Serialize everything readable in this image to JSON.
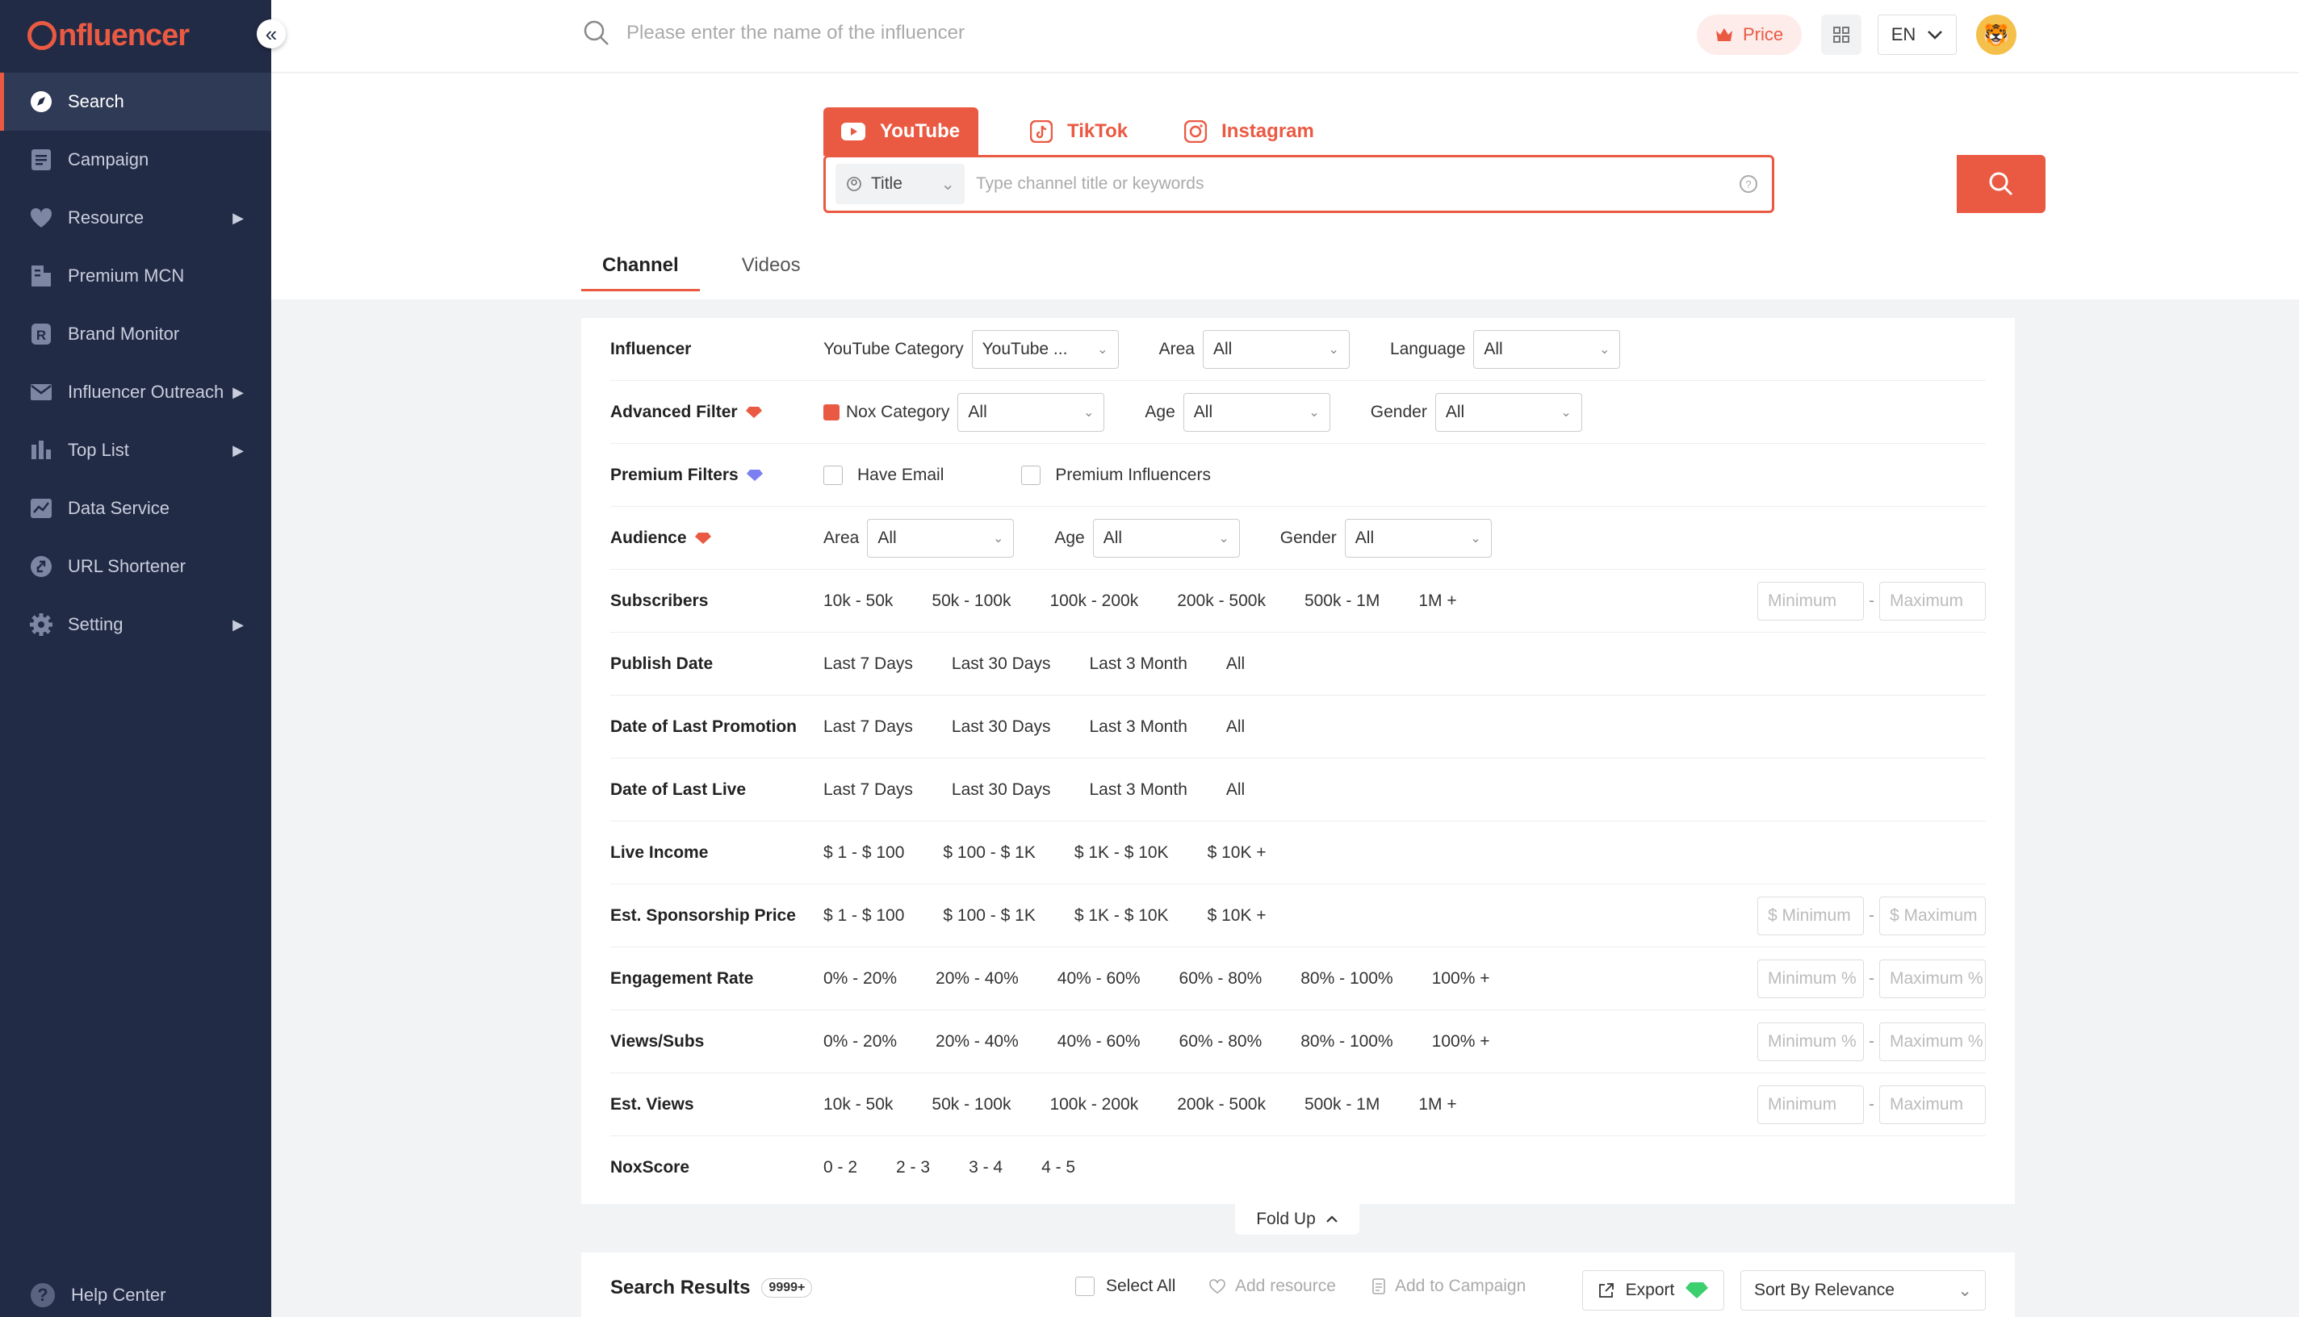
{
  "sidebar": {
    "brand": "nfluencer",
    "items": [
      {
        "label": "Search",
        "icon": "compass-icon",
        "active": true
      },
      {
        "label": "Campaign",
        "icon": "document-icon"
      },
      {
        "label": "Resource",
        "icon": "heart-icon",
        "submenu": true
      },
      {
        "label": "Premium MCN",
        "icon": "building-icon"
      },
      {
        "label": "Brand Monitor",
        "icon": "brand-r-icon"
      },
      {
        "label": "Influencer Outreach",
        "icon": "mail-icon",
        "submenu": true
      },
      {
        "label": "Top List",
        "icon": "bar-chart-icon",
        "submenu": true
      },
      {
        "label": "Data Service",
        "icon": "line-chart-icon"
      },
      {
        "label": "URL Shortener",
        "icon": "link-icon"
      },
      {
        "label": "Setting",
        "icon": "gear-icon",
        "submenu": true
      }
    ],
    "help": "Help Center"
  },
  "topbar": {
    "search_placeholder": "Please enter the name of the influencer",
    "price": "Price",
    "lang": "EN"
  },
  "platforms": [
    {
      "label": "YouTube",
      "active": true
    },
    {
      "label": "TikTok"
    },
    {
      "label": "Instagram"
    }
  ],
  "search": {
    "type": "Title",
    "placeholder": "Type channel title or keywords"
  },
  "subtabs": [
    "Channel",
    "Videos"
  ],
  "filters": {
    "influencer": {
      "label": "Influencer",
      "yt_cat_label": "YouTube Category",
      "yt_cat_value": "YouTube ...",
      "area_label": "Area",
      "area_value": "All",
      "lang_label": "Language",
      "lang_value": "All"
    },
    "advanced": {
      "label": "Advanced Filter",
      "nox_label": "Nox Category",
      "nox_value": "All",
      "age_label": "Age",
      "age_value": "All",
      "gender_label": "Gender",
      "gender_value": "All"
    },
    "premium": {
      "label": "Premium Filters",
      "opt1": "Have Email",
      "opt2": "Premium Influencers"
    },
    "audience": {
      "label": "Audience",
      "area_label": "Area",
      "area_value": "All",
      "age_label": "Age",
      "age_value": "All",
      "gender_label": "Gender",
      "gender_value": "All"
    },
    "subscribers": {
      "label": "Subscribers",
      "options": [
        "10k - 50k",
        "50k - 100k",
        "100k - 200k",
        "200k - 500k",
        "500k - 1M",
        "1M +"
      ],
      "min": "Minimum",
      "max": "Maximum"
    },
    "publish": {
      "label": "Publish Date",
      "options": [
        "Last 7 Days",
        "Last 30 Days",
        "Last 3 Month",
        "All"
      ]
    },
    "promotion": {
      "label": "Date of Last Promotion",
      "options": [
        "Last 7 Days",
        "Last 30 Days",
        "Last 3 Month",
        "All"
      ]
    },
    "live": {
      "label": "Date of Last Live",
      "options": [
        "Last 7 Days",
        "Last 30 Days",
        "Last 3 Month",
        "All"
      ]
    },
    "live_income": {
      "label": "Live Income",
      "options": [
        "$ 1 - $ 100",
        "$ 100 - $ 1K",
        "$ 1K - $ 10K",
        "$ 10K +"
      ]
    },
    "sponsorship": {
      "label": "Est. Sponsorship Price",
      "options": [
        "$ 1 - $ 100",
        "$ 100 - $ 1K",
        "$ 1K - $ 10K",
        "$ 10K +"
      ],
      "min": "$ Minimum",
      "max": "$ Maximum"
    },
    "engagement": {
      "label": "Engagement Rate",
      "options": [
        "0% - 20%",
        "20% - 40%",
        "40% - 60%",
        "60% - 80%",
        "80% - 100%",
        "100% +"
      ],
      "min": "Minimum %",
      "max": "Maximum %"
    },
    "views_subs": {
      "label": "Views/Subs",
      "options": [
        "0% - 20%",
        "20% - 40%",
        "40% - 60%",
        "60% - 80%",
        "80% - 100%",
        "100% +"
      ],
      "min": "Minimum %",
      "max": "Maximum %"
    },
    "est_views": {
      "label": "Est. Views",
      "options": [
        "10k - 50k",
        "50k - 100k",
        "100k - 200k",
        "200k - 500k",
        "500k - 1M",
        "1M +"
      ],
      "min": "Minimum",
      "max": "Maximum"
    },
    "noxscore": {
      "label": "NoxScore",
      "options": [
        "0 - 2",
        "2 - 3",
        "3 - 4",
        "4 - 5"
      ]
    }
  },
  "fold_up": "Fold Up",
  "results": {
    "title": "Search Results",
    "count": "9999+",
    "select_all": "Select All",
    "add_resource": "Add resource",
    "add_campaign": "Add to Campaign",
    "export": "Export",
    "sort": "Sort By Relevance"
  },
  "colors": {
    "accent": "#ea5a43",
    "sidebar": "#222b45"
  }
}
